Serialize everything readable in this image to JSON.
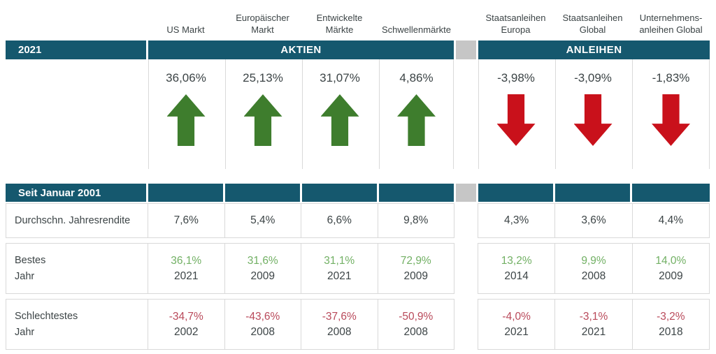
{
  "colors": {
    "teal": "#15586E",
    "spacer-gray": "#C6C6C6",
    "arrow-green": "#3E7D2D",
    "arrow-red": "#C9111B",
    "pos-green": "#72B064",
    "neg-red": "#B9495A",
    "text-dark": "#3C4446",
    "border-gray": "#D9D9D9"
  },
  "columns": {
    "headers": [
      "US Markt",
      "Europäischer\nMarkt",
      "Entwickelte\nMärkte",
      "Schwellenmärkte",
      "Staatsanleihen\nEuropa",
      "Staatsanleihen\nGlobal",
      "Unternehmens-\nanleihen Global"
    ]
  },
  "section_2021": {
    "row_label": "2021",
    "group_aktien": "AKTIEN",
    "group_anleihen": "ANLEIHEN",
    "values": [
      "36,06%",
      "25,13%",
      "31,07%",
      "4,86%",
      "-3,98%",
      "-3,09%",
      "-1,83%"
    ],
    "directions": [
      "up",
      "up",
      "up",
      "up",
      "down",
      "down",
      "down"
    ]
  },
  "section_since2001": {
    "row_label": "Seit Januar 2001",
    "avg": {
      "label": "Durchschn. Jahresrendite",
      "values": [
        "7,6%",
        "5,4%",
        "6,6%",
        "9,8%",
        "4,3%",
        "3,6%",
        "4,4%"
      ]
    },
    "best": {
      "label": "Bestes\nJahr",
      "cells": [
        {
          "pct": "36,1%",
          "year": "2021"
        },
        {
          "pct": "31,6%",
          "year": "2009"
        },
        {
          "pct": "31,1%",
          "year": "2021"
        },
        {
          "pct": "72,9%",
          "year": "2009"
        },
        {
          "pct": "13,2%",
          "year": "2014"
        },
        {
          "pct": "9,9%",
          "year": "2008"
        },
        {
          "pct": "14,0%",
          "year": "2009"
        }
      ]
    },
    "worst": {
      "label": "Schlechtestes\nJahr",
      "cells": [
        {
          "pct": "-34,7%",
          "year": "2002"
        },
        {
          "pct": "-43,6%",
          "year": "2008"
        },
        {
          "pct": "-37,6%",
          "year": "2008"
        },
        {
          "pct": "-50,9%",
          "year": "2008"
        },
        {
          "pct": "-4,0%",
          "year": "2021"
        },
        {
          "pct": "-3,1%",
          "year": "2021"
        },
        {
          "pct": "-3,2%",
          "year": "2018"
        }
      ]
    }
  },
  "chart_data": {
    "type": "table",
    "title": "Marktrenditen 2021 und seit Januar 2001",
    "groups": [
      {
        "name": "AKTIEN",
        "columns": [
          "US Markt",
          "Europäischer Markt",
          "Entwickelte Märkte",
          "Schwellenmärkte"
        ]
      },
      {
        "name": "ANLEIHEN",
        "columns": [
          "Staatsanleihen Europa",
          "Staatsanleihen Global",
          "Unternehmensanleihen Global"
        ]
      }
    ],
    "columns": [
      "US Markt",
      "Europäischer Markt",
      "Entwickelte Märkte",
      "Schwellenmärkte",
      "Staatsanleihen Europa",
      "Staatsanleihen Global",
      "Unternehmensanleihen Global"
    ],
    "rows": [
      {
        "label": "2021 Rendite (%)",
        "values": [
          36.06,
          25.13,
          31.07,
          4.86,
          -3.98,
          -3.09,
          -1.83
        ]
      },
      {
        "label": "Durchschn. Jahresrendite seit Januar 2001 (%)",
        "values": [
          7.6,
          5.4,
          6.6,
          9.8,
          4.3,
          3.6,
          4.4
        ]
      },
      {
        "label": "Bestes Jahr (%)",
        "values": [
          36.1,
          31.6,
          31.1,
          72.9,
          13.2,
          9.9,
          14.0
        ],
        "years": [
          2021,
          2009,
          2021,
          2009,
          2014,
          2008,
          2009
        ]
      },
      {
        "label": "Schlechtestes Jahr (%)",
        "values": [
          -34.7,
          -43.6,
          -37.6,
          -50.9,
          -4.0,
          -3.1,
          -3.2
        ],
        "years": [
          2002,
          2008,
          2008,
          2008,
          2021,
          2021,
          2018
        ]
      }
    ]
  }
}
